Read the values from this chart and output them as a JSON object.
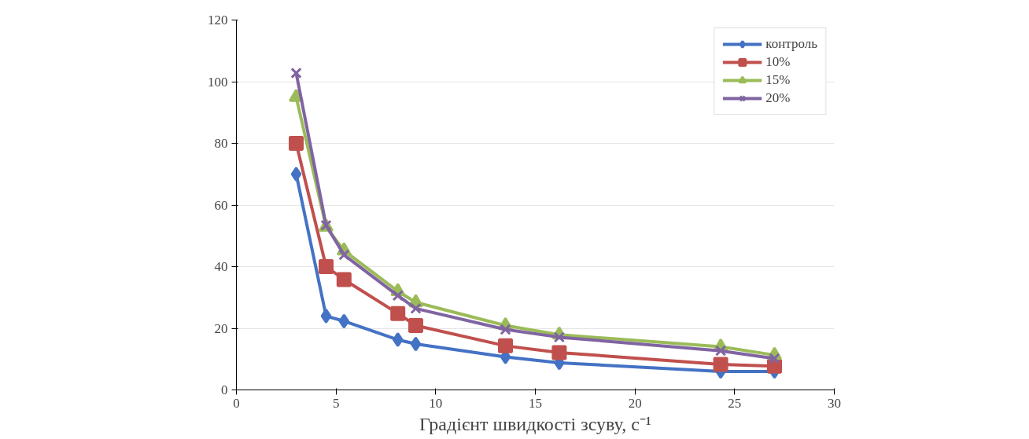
{
  "chart_data": {
    "type": "line",
    "xlabel": "Градієнт швидкості зсуву, с⁻¹",
    "x": [
      3,
      4.5,
      5.4,
      8.1,
      9,
      13.5,
      16.2,
      24.3,
      27
    ],
    "series": [
      {
        "name": "контроль",
        "color": "#4472c4",
        "marker": "diamond",
        "values": [
          70,
          24,
          22.3,
          16.3,
          14.9,
          10.7,
          8.8,
          6,
          6
        ]
      },
      {
        "name": "10%",
        "color": "#c0504d",
        "marker": "square",
        "values": [
          80,
          40,
          35.8,
          24.8,
          20.9,
          14.3,
          12.1,
          8.3,
          7.7
        ]
      },
      {
        "name": "15%",
        "color": "#9bbb59",
        "marker": "triangle",
        "values": [
          95,
          52.9,
          45.2,
          32,
          28.4,
          20.9,
          17.9,
          14,
          11.3
        ]
      },
      {
        "name": "20%",
        "color": "#8064a2",
        "marker": "cross",
        "values": [
          102.8,
          53.4,
          43.8,
          30.6,
          26.4,
          19.6,
          17.1,
          12.7,
          10.2
        ]
      }
    ],
    "xlim": [
      0,
      30
    ],
    "xticks": [
      0,
      5,
      10,
      15,
      20,
      25,
      30
    ],
    "ylim": [
      0,
      120
    ],
    "yticks": [
      0,
      20,
      40,
      60,
      80,
      100,
      120
    ],
    "grid": "y",
    "legend": "top right",
    "line_style": "solid"
  }
}
